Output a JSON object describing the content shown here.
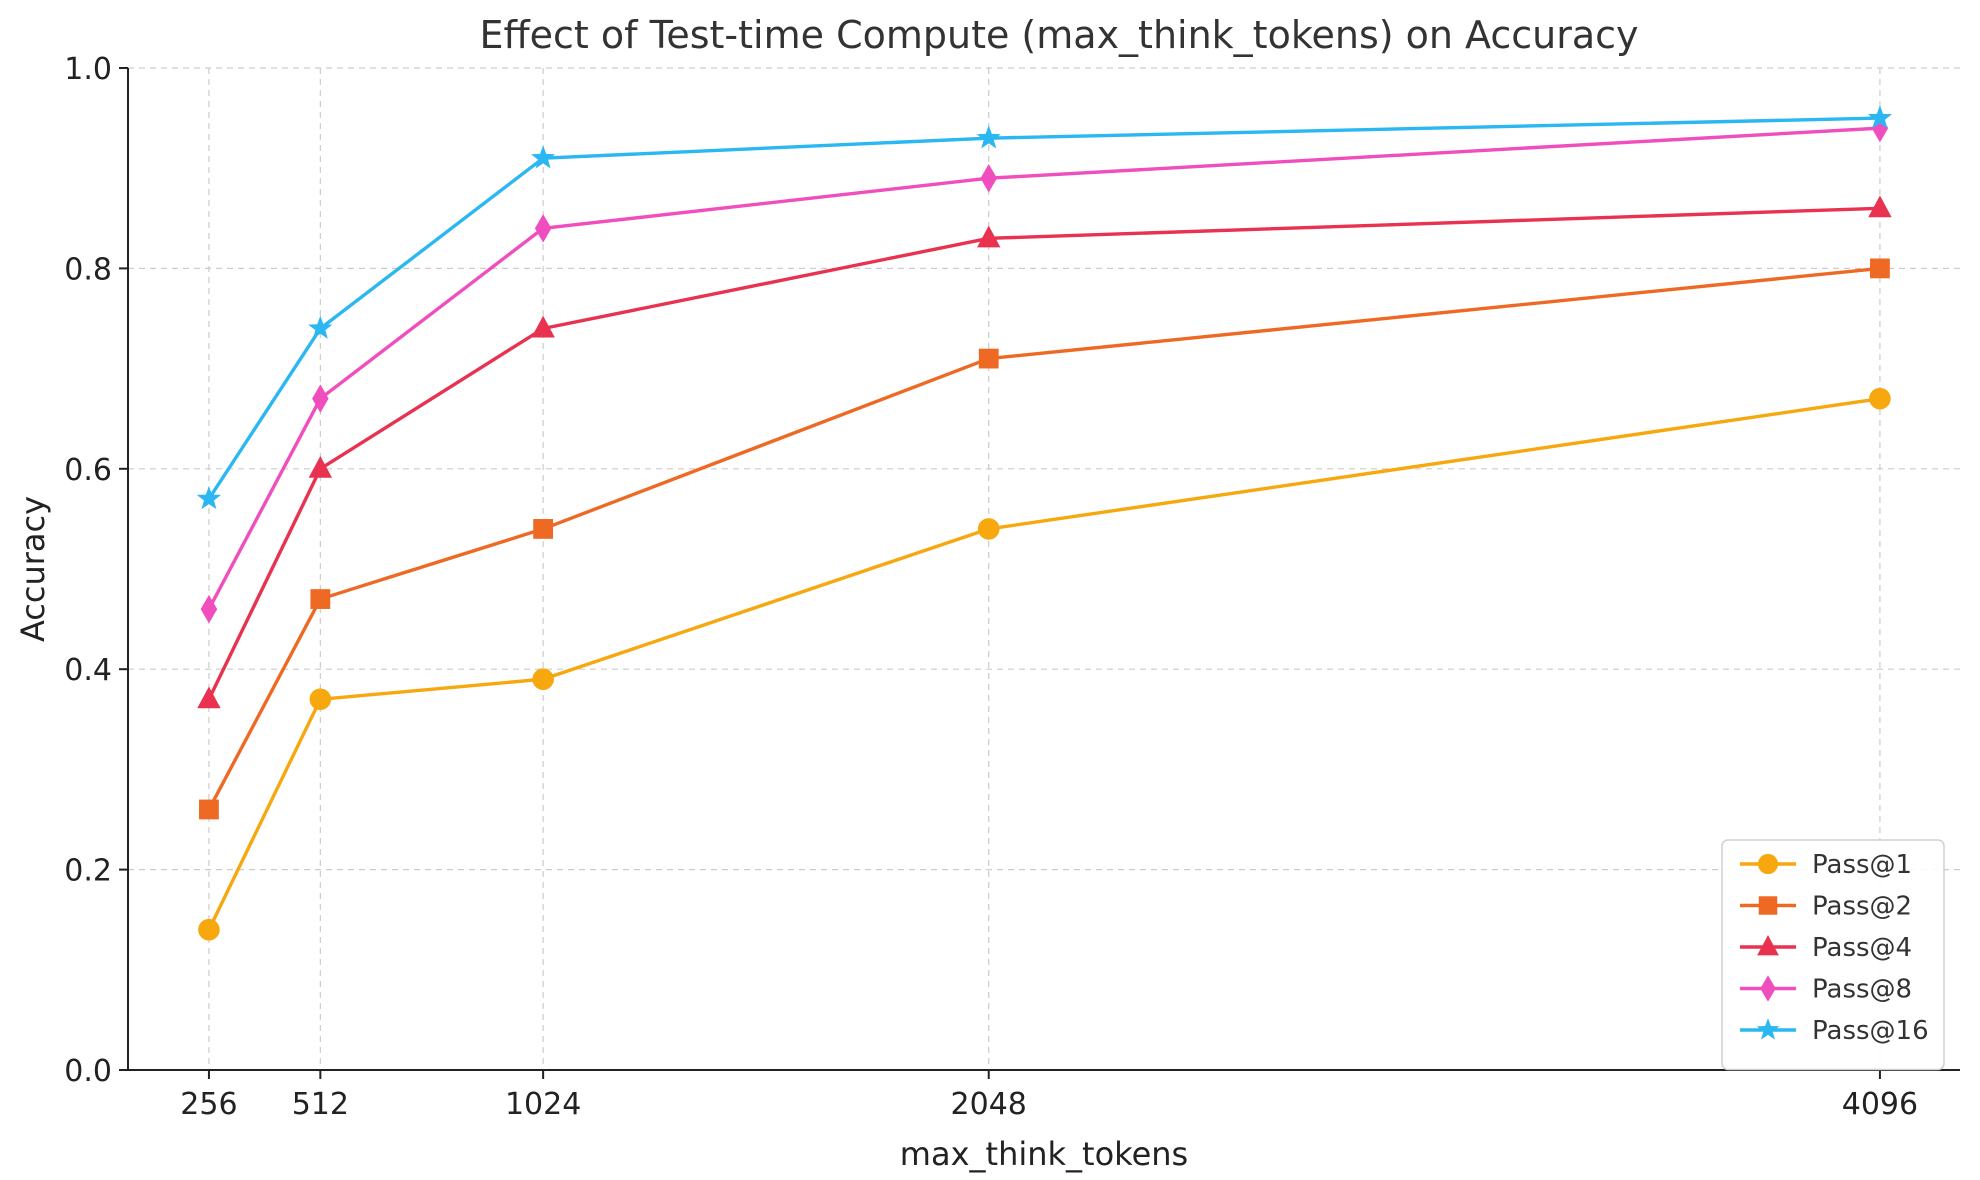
{
  "chart_data": {
    "type": "line",
    "title": "Effect of Test-time Compute (max_think_tokens) on Accuracy",
    "xlabel": "max_think_tokens",
    "ylabel": "Accuracy",
    "x": [
      256,
      512,
      1024,
      2048,
      4096
    ],
    "x_tick_labels": [
      "256",
      "512",
      "1024",
      "2048",
      "4096"
    ],
    "y_ticks": [
      0.0,
      0.2,
      0.4,
      0.6,
      0.8,
      1.0
    ],
    "y_tick_labels": [
      "0.0",
      "0.2",
      "0.4",
      "0.6",
      "0.8",
      "1.0"
    ],
    "xlim": [
      70,
      4280
    ],
    "ylim": [
      0.0,
      1.0
    ],
    "grid": true,
    "legend_position": "bottom-right",
    "series": [
      {
        "name": "Pass@1",
        "marker": "circle",
        "color": "#F6A80E",
        "values": [
          0.14,
          0.37,
          0.39,
          0.54,
          0.67
        ]
      },
      {
        "name": "Pass@2",
        "marker": "square",
        "color": "#EE6A24",
        "values": [
          0.26,
          0.47,
          0.54,
          0.71,
          0.8
        ]
      },
      {
        "name": "Pass@4",
        "marker": "triangle",
        "color": "#E8324F",
        "values": [
          0.37,
          0.6,
          0.74,
          0.83,
          0.86
        ]
      },
      {
        "name": "Pass@8",
        "marker": "diamond",
        "color": "#F04EBE",
        "values": [
          0.46,
          0.67,
          0.84,
          0.89,
          0.94
        ]
      },
      {
        "name": "Pass@16",
        "marker": "star",
        "color": "#2BB7F2",
        "values": [
          0.57,
          0.74,
          0.91,
          0.93,
          0.95
        ]
      }
    ]
  }
}
